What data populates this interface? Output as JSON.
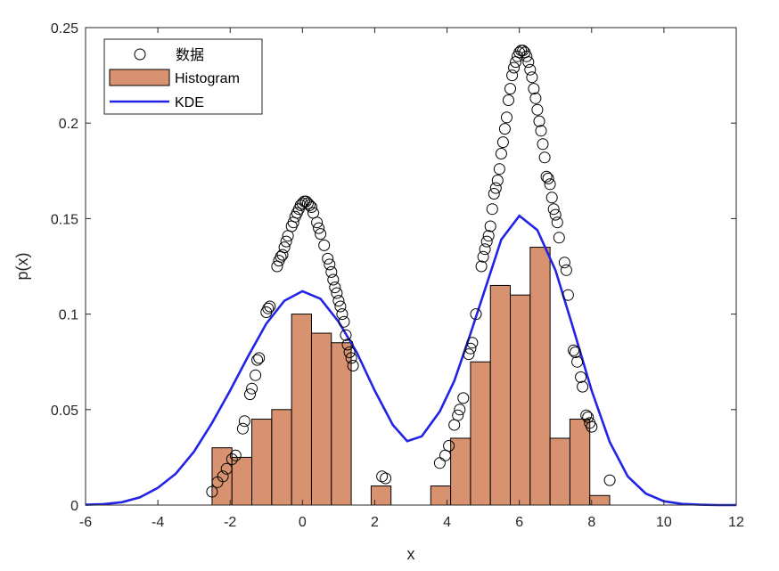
{
  "chart_data": {
    "type": "bar",
    "xlabel": "x",
    "ylabel": "p(x)",
    "xlim": [
      -6,
      12
    ],
    "ylim": [
      0,
      0.25
    ],
    "xticks": [
      "-6",
      "-4",
      "-2",
      "0",
      "2",
      "4",
      "6",
      "8",
      "10",
      "12"
    ],
    "yticks": [
      "0",
      "0.05",
      "0.1",
      "0.15",
      "0.2",
      "0.25"
    ],
    "grid": false,
    "legend_position": "top-left",
    "colors": {
      "histogram_fill": "#d9926f",
      "kde_line": "#2323e6",
      "markers": "#000000",
      "axes": "#262626"
    },
    "series": [
      {
        "name": "数据",
        "kind": "scatter",
        "marker": "circle",
        "points": [
          [
            -2.5,
            0.007
          ],
          [
            -2.35,
            0.012
          ],
          [
            -2.2,
            0.015
          ],
          [
            -2.1,
            0.019
          ],
          [
            -1.95,
            0.024
          ],
          [
            -1.85,
            0.026
          ],
          [
            -1.65,
            0.04
          ],
          [
            -1.6,
            0.044
          ],
          [
            -1.45,
            0.058
          ],
          [
            -1.4,
            0.061
          ],
          [
            -1.3,
            0.068
          ],
          [
            -1.25,
            0.076
          ],
          [
            -1.2,
            0.077
          ],
          [
            -1.0,
            0.101
          ],
          [
            -0.95,
            0.103
          ],
          [
            -0.9,
            0.104
          ],
          [
            -0.7,
            0.125
          ],
          [
            -0.65,
            0.128
          ],
          [
            -0.6,
            0.13
          ],
          [
            -0.55,
            0.131
          ],
          [
            -0.5,
            0.135
          ],
          [
            -0.45,
            0.138
          ],
          [
            -0.4,
            0.141
          ],
          [
            -0.3,
            0.146
          ],
          [
            -0.25,
            0.148
          ],
          [
            -0.2,
            0.151
          ],
          [
            -0.15,
            0.153
          ],
          [
            -0.1,
            0.155
          ],
          [
            -0.05,
            0.157
          ],
          [
            0.0,
            0.158
          ],
          [
            0.05,
            0.159
          ],
          [
            0.1,
            0.159
          ],
          [
            0.15,
            0.158
          ],
          [
            0.2,
            0.157
          ],
          [
            0.25,
            0.156
          ],
          [
            0.3,
            0.153
          ],
          [
            0.4,
            0.148
          ],
          [
            0.45,
            0.145
          ],
          [
            0.5,
            0.142
          ],
          [
            0.6,
            0.136
          ],
          [
            0.7,
            0.129
          ],
          [
            0.75,
            0.126
          ],
          [
            0.8,
            0.122
          ],
          [
            0.85,
            0.118
          ],
          [
            0.9,
            0.114
          ],
          [
            0.95,
            0.111
          ],
          [
            1.0,
            0.107
          ],
          [
            1.05,
            0.104
          ],
          [
            1.1,
            0.1
          ],
          [
            1.15,
            0.096
          ],
          [
            1.2,
            0.089
          ],
          [
            1.25,
            0.084
          ],
          [
            1.3,
            0.08
          ],
          [
            1.35,
            0.077
          ],
          [
            1.4,
            0.073
          ],
          [
            2.2,
            0.015
          ],
          [
            2.3,
            0.014
          ],
          [
            3.8,
            0.022
          ],
          [
            3.95,
            0.026
          ],
          [
            4.05,
            0.031
          ],
          [
            4.2,
            0.042
          ],
          [
            4.3,
            0.047
          ],
          [
            4.35,
            0.05
          ],
          [
            4.45,
            0.056
          ],
          [
            4.6,
            0.079
          ],
          [
            4.65,
            0.082
          ],
          [
            4.7,
            0.085
          ],
          [
            4.8,
            0.1
          ],
          [
            4.95,
            0.125
          ],
          [
            5.0,
            0.13
          ],
          [
            5.05,
            0.134
          ],
          [
            5.1,
            0.138
          ],
          [
            5.15,
            0.141
          ],
          [
            5.2,
            0.146
          ],
          [
            5.25,
            0.155
          ],
          [
            5.3,
            0.163
          ],
          [
            5.35,
            0.166
          ],
          [
            5.4,
            0.17
          ],
          [
            5.45,
            0.176
          ],
          [
            5.5,
            0.184
          ],
          [
            5.55,
            0.19
          ],
          [
            5.6,
            0.197
          ],
          [
            5.65,
            0.203
          ],
          [
            5.7,
            0.212
          ],
          [
            5.75,
            0.218
          ],
          [
            5.8,
            0.225
          ],
          [
            5.85,
            0.229
          ],
          [
            5.9,
            0.232
          ],
          [
            5.95,
            0.235
          ],
          [
            6.0,
            0.237
          ],
          [
            6.05,
            0.238
          ],
          [
            6.1,
            0.238
          ],
          [
            6.15,
            0.237
          ],
          [
            6.2,
            0.235
          ],
          [
            6.25,
            0.232
          ],
          [
            6.3,
            0.228
          ],
          [
            6.35,
            0.224
          ],
          [
            6.4,
            0.218
          ],
          [
            6.45,
            0.213
          ],
          [
            6.5,
            0.207
          ],
          [
            6.55,
            0.201
          ],
          [
            6.6,
            0.196
          ],
          [
            6.65,
            0.189
          ],
          [
            6.7,
            0.182
          ],
          [
            6.75,
            0.172
          ],
          [
            6.8,
            0.171
          ],
          [
            6.85,
            0.168
          ],
          [
            6.9,
            0.161
          ],
          [
            6.95,
            0.155
          ],
          [
            7.0,
            0.152
          ],
          [
            7.05,
            0.148
          ],
          [
            7.1,
            0.14
          ],
          [
            7.25,
            0.127
          ],
          [
            7.3,
            0.123
          ],
          [
            7.35,
            0.11
          ],
          [
            7.5,
            0.081
          ],
          [
            7.55,
            0.08
          ],
          [
            7.6,
            0.075
          ],
          [
            7.7,
            0.067
          ],
          [
            7.75,
            0.062
          ],
          [
            7.85,
            0.047
          ],
          [
            7.9,
            0.046
          ],
          [
            7.95,
            0.043
          ],
          [
            8.0,
            0.041
          ],
          [
            8.5,
            0.013
          ]
        ]
      },
      {
        "name": "Histogram",
        "kind": "histogram",
        "bin_width": 0.55,
        "bins": [
          {
            "start": -2.5,
            "value": 0.03
          },
          {
            "start": -1.95,
            "value": 0.025
          },
          {
            "start": -1.4,
            "value": 0.045
          },
          {
            "start": -0.85,
            "value": 0.05
          },
          {
            "start": -0.3,
            "value": 0.1
          },
          {
            "start": 0.25,
            "value": 0.09
          },
          {
            "start": 0.8,
            "value": 0.085
          },
          {
            "start": 1.35,
            "value": 0.0
          },
          {
            "start": 1.9,
            "value": 0.01
          },
          {
            "start": 2.45,
            "value": 0.0
          },
          {
            "start": 3.0,
            "value": 0.0
          },
          {
            "start": 3.55,
            "value": 0.01
          },
          {
            "start": 4.1,
            "value": 0.035
          },
          {
            "start": 4.65,
            "value": 0.075
          },
          {
            "start": 5.2,
            "value": 0.115
          },
          {
            "start": 5.75,
            "value": 0.11
          },
          {
            "start": 6.3,
            "value": 0.135
          },
          {
            "start": 6.85,
            "value": 0.035
          },
          {
            "start": 7.4,
            "value": 0.045
          },
          {
            "start": 7.95,
            "value": 0.005
          }
        ]
      },
      {
        "name": "KDE",
        "kind": "line",
        "points": [
          [
            -6,
            0.0002
          ],
          [
            -5.5,
            0.0005
          ],
          [
            -5,
            0.0015
          ],
          [
            -4.5,
            0.004
          ],
          [
            -4,
            0.009
          ],
          [
            -3.5,
            0.0165
          ],
          [
            -3,
            0.028
          ],
          [
            -2.5,
            0.043
          ],
          [
            -2,
            0.06
          ],
          [
            -1.5,
            0.078
          ],
          [
            -1,
            0.095
          ],
          [
            -0.5,
            0.107
          ],
          [
            0,
            0.112
          ],
          [
            0.5,
            0.108
          ],
          [
            1,
            0.096
          ],
          [
            1.5,
            0.08
          ],
          [
            2,
            0.06
          ],
          [
            2.5,
            0.042
          ],
          [
            2.9,
            0.0335
          ],
          [
            3.3,
            0.036
          ],
          [
            3.8,
            0.049
          ],
          [
            4.2,
            0.065
          ],
          [
            4.6,
            0.087
          ],
          [
            5,
            0.11
          ],
          [
            5.5,
            0.139
          ],
          [
            6,
            0.1515
          ],
          [
            6.5,
            0.144
          ],
          [
            7,
            0.123
          ],
          [
            7.5,
            0.092
          ],
          [
            8,
            0.06
          ],
          [
            8.5,
            0.033
          ],
          [
            9,
            0.015
          ],
          [
            9.5,
            0.006
          ],
          [
            10,
            0.002
          ],
          [
            10.5,
            0.0006
          ],
          [
            11,
            0.0002
          ],
          [
            11.5,
            0.0
          ],
          [
            12,
            0.0
          ]
        ]
      }
    ]
  }
}
